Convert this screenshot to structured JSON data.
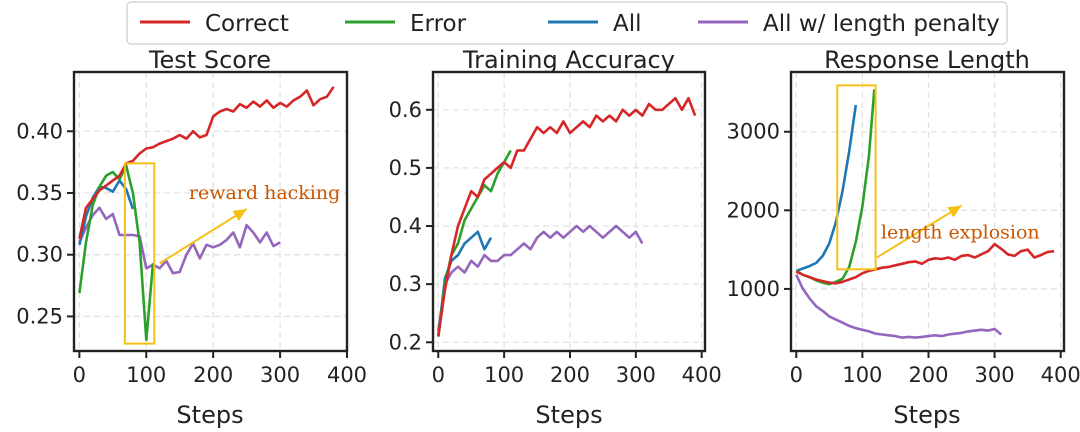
{
  "legend": [
    {
      "name": "Correct",
      "color": "#d62728"
    },
    {
      "name": "Error",
      "color": "#2ca02c"
    },
    {
      "name": "All",
      "color": "#1f77b4"
    },
    {
      "name": "All w/ length penalty",
      "color": "#9467bd"
    }
  ],
  "annotation_color": "#f5c118",
  "annotation_text_color": "#cc5500",
  "chart_data": [
    {
      "type": "line",
      "title": "Test Score",
      "xlabel": "Steps",
      "ylabel": "",
      "xlim": [
        -8,
        400
      ],
      "ylim": [
        0.222,
        0.448
      ],
      "xticks": [
        0,
        100,
        200,
        300,
        400
      ],
      "yticks": [
        0.25,
        0.3,
        0.35,
        0.4
      ],
      "ytick_labels": [
        "0.25",
        "0.30",
        "0.35",
        "0.40"
      ],
      "grid": true,
      "series": [
        {
          "name": "Correct",
          "x": [
            0,
            10,
            20,
            30,
            40,
            50,
            60,
            70,
            80,
            90,
            100,
            110,
            120,
            130,
            140,
            150,
            160,
            170,
            180,
            190,
            200,
            210,
            220,
            230,
            240,
            250,
            260,
            270,
            280,
            290,
            300,
            310,
            320,
            330,
            340,
            350,
            360,
            370,
            380
          ],
          "y": [
            0.313,
            0.338,
            0.345,
            0.352,
            0.356,
            0.36,
            0.364,
            0.374,
            0.376,
            0.382,
            0.386,
            0.387,
            0.39,
            0.392,
            0.394,
            0.397,
            0.394,
            0.4,
            0.395,
            0.397,
            0.412,
            0.416,
            0.418,
            0.416,
            0.422,
            0.419,
            0.424,
            0.42,
            0.425,
            0.419,
            0.423,
            0.42,
            0.425,
            0.428,
            0.433,
            0.421,
            0.426,
            0.428,
            0.436
          ]
        },
        {
          "name": "Error",
          "x": [
            0,
            10,
            20,
            30,
            40,
            50,
            60,
            70,
            80,
            90,
            100,
            110
          ],
          "y": [
            0.269,
            0.31,
            0.34,
            0.355,
            0.364,
            0.367,
            0.361,
            0.372,
            0.35,
            0.31,
            0.231,
            0.293
          ]
        },
        {
          "name": "All",
          "x": [
            0,
            10,
            20,
            30,
            40,
            50,
            60,
            70,
            80
          ],
          "y": [
            0.308,
            0.331,
            0.346,
            0.355,
            0.354,
            0.351,
            0.36,
            0.353,
            0.337
          ]
        },
        {
          "name": "All w/ length penalty",
          "x": [
            0,
            10,
            20,
            30,
            40,
            50,
            60,
            70,
            80,
            90,
            100,
            110,
            120,
            130,
            140,
            150,
            160,
            170,
            180,
            190,
            200,
            210,
            220,
            230,
            240,
            250,
            260,
            270,
            280,
            290,
            300
          ],
          "y": [
            0.31,
            0.322,
            0.332,
            0.338,
            0.329,
            0.333,
            0.316,
            0.316,
            0.316,
            0.315,
            0.289,
            0.292,
            0.289,
            0.295,
            0.285,
            0.286,
            0.3,
            0.309,
            0.297,
            0.308,
            0.306,
            0.308,
            0.312,
            0.318,
            0.306,
            0.324,
            0.318,
            0.31,
            0.318,
            0.307,
            0.31
          ]
        }
      ],
      "annotation": {
        "text": "reward hacking",
        "box_x": [
          68,
          112
        ],
        "box_y": [
          0.228,
          0.374
        ],
        "arrow_from": [
          120,
          0.293
        ],
        "arrow_to": [
          250,
          0.337
        ],
        "text_x": 390,
        "text_y": 0.345
      }
    },
    {
      "type": "line",
      "title": "Training Accuracy",
      "xlabel": "Steps",
      "ylabel": "",
      "xlim": [
        -8,
        405
      ],
      "ylim": [
        0.185,
        0.665
      ],
      "xticks": [
        0,
        100,
        200,
        300,
        400
      ],
      "yticks": [
        0.2,
        0.3,
        0.4,
        0.5,
        0.6
      ],
      "ytick_labels": [
        "0.2",
        "0.3",
        "0.4",
        "0.5",
        "0.6"
      ],
      "grid": true,
      "series": [
        {
          "name": "Correct",
          "x": [
            0,
            10,
            20,
            30,
            40,
            50,
            60,
            70,
            80,
            90,
            100,
            110,
            120,
            130,
            140,
            150,
            160,
            170,
            180,
            190,
            200,
            210,
            220,
            230,
            240,
            250,
            260,
            270,
            280,
            290,
            300,
            310,
            320,
            330,
            340,
            350,
            360,
            370,
            380,
            390
          ],
          "y": [
            0.21,
            0.29,
            0.35,
            0.4,
            0.43,
            0.46,
            0.45,
            0.48,
            0.49,
            0.5,
            0.51,
            0.5,
            0.53,
            0.53,
            0.55,
            0.57,
            0.56,
            0.57,
            0.56,
            0.58,
            0.56,
            0.57,
            0.58,
            0.57,
            0.59,
            0.58,
            0.59,
            0.58,
            0.6,
            0.59,
            0.6,
            0.59,
            0.61,
            0.6,
            0.6,
            0.61,
            0.62,
            0.6,
            0.62,
            0.59
          ]
        },
        {
          "name": "Error",
          "x": [
            0,
            10,
            20,
            30,
            40,
            50,
            60,
            70,
            80,
            90,
            100,
            110
          ],
          "y": [
            0.21,
            0.3,
            0.35,
            0.37,
            0.41,
            0.43,
            0.45,
            0.47,
            0.46,
            0.49,
            0.51,
            0.53
          ]
        },
        {
          "name": "All",
          "x": [
            0,
            10,
            20,
            30,
            40,
            50,
            60,
            70,
            80
          ],
          "y": [
            0.21,
            0.31,
            0.34,
            0.35,
            0.37,
            0.38,
            0.39,
            0.36,
            0.38
          ]
        },
        {
          "name": "All w/ length penalty",
          "x": [
            0,
            10,
            20,
            30,
            40,
            50,
            60,
            70,
            80,
            90,
            100,
            110,
            120,
            130,
            140,
            150,
            160,
            170,
            180,
            190,
            200,
            210,
            220,
            230,
            240,
            250,
            260,
            270,
            280,
            290,
            300,
            310
          ],
          "y": [
            0.22,
            0.3,
            0.32,
            0.33,
            0.32,
            0.34,
            0.33,
            0.35,
            0.34,
            0.34,
            0.35,
            0.35,
            0.36,
            0.37,
            0.36,
            0.38,
            0.39,
            0.38,
            0.39,
            0.38,
            0.39,
            0.4,
            0.39,
            0.4,
            0.39,
            0.38,
            0.39,
            0.4,
            0.39,
            0.38,
            0.39,
            0.37
          ]
        }
      ]
    },
    {
      "type": "line",
      "title": "Response Length",
      "xlabel": "Steps",
      "ylabel": "",
      "xlim": [
        -8,
        405
      ],
      "ylim": [
        210,
        3760
      ],
      "xticks": [
        0,
        100,
        200,
        300,
        400
      ],
      "yticks": [
        1000,
        2000,
        3000
      ],
      "ytick_labels": [
        "1000",
        "2000",
        "3000"
      ],
      "grid": true,
      "series": [
        {
          "name": "Correct",
          "x": [
            0,
            10,
            20,
            30,
            40,
            50,
            60,
            70,
            80,
            90,
            100,
            110,
            120,
            130,
            140,
            150,
            160,
            170,
            180,
            190,
            200,
            210,
            220,
            230,
            240,
            250,
            260,
            270,
            280,
            290,
            300,
            310,
            320,
            330,
            340,
            350,
            360,
            370,
            380,
            390
          ],
          "y": [
            1220,
            1180,
            1150,
            1120,
            1100,
            1080,
            1070,
            1090,
            1120,
            1150,
            1200,
            1230,
            1250,
            1270,
            1280,
            1300,
            1320,
            1340,
            1350,
            1320,
            1370,
            1390,
            1380,
            1400,
            1370,
            1420,
            1430,
            1400,
            1440,
            1480,
            1570,
            1510,
            1440,
            1420,
            1480,
            1500,
            1400,
            1430,
            1470,
            1480
          ]
        },
        {
          "name": "Error",
          "x": [
            0,
            10,
            20,
            30,
            40,
            50,
            60,
            70,
            80,
            90,
            100,
            110,
            118
          ],
          "y": [
            1230,
            1180,
            1150,
            1110,
            1080,
            1060,
            1090,
            1130,
            1280,
            1600,
            2050,
            2700,
            3540
          ]
        },
        {
          "name": "All",
          "x": [
            0,
            10,
            20,
            30,
            40,
            50,
            60,
            70,
            80,
            90
          ],
          "y": [
            1230,
            1260,
            1290,
            1330,
            1420,
            1580,
            1850,
            2250,
            2750,
            3340
          ]
        },
        {
          "name": "All w/ length penalty",
          "x": [
            0,
            10,
            20,
            30,
            40,
            50,
            60,
            70,
            80,
            90,
            100,
            110,
            120,
            130,
            140,
            150,
            160,
            170,
            180,
            190,
            200,
            210,
            220,
            230,
            240,
            250,
            260,
            270,
            280,
            290,
            300,
            310
          ],
          "y": [
            1180,
            1000,
            880,
            780,
            720,
            650,
            610,
            570,
            530,
            500,
            480,
            460,
            430,
            420,
            410,
            400,
            380,
            390,
            380,
            390,
            400,
            410,
            400,
            420,
            430,
            440,
            460,
            470,
            480,
            470,
            490,
            420
          ]
        }
      ],
      "annotation": {
        "text": "length explosion",
        "box_x": [
          62,
          120
        ],
        "box_y": [
          1250,
          3590
        ],
        "arrow_from": [
          122,
          1400
        ],
        "arrow_to": [
          250,
          2060
        ],
        "text_x": 128,
        "text_y": 1640
      }
    }
  ]
}
